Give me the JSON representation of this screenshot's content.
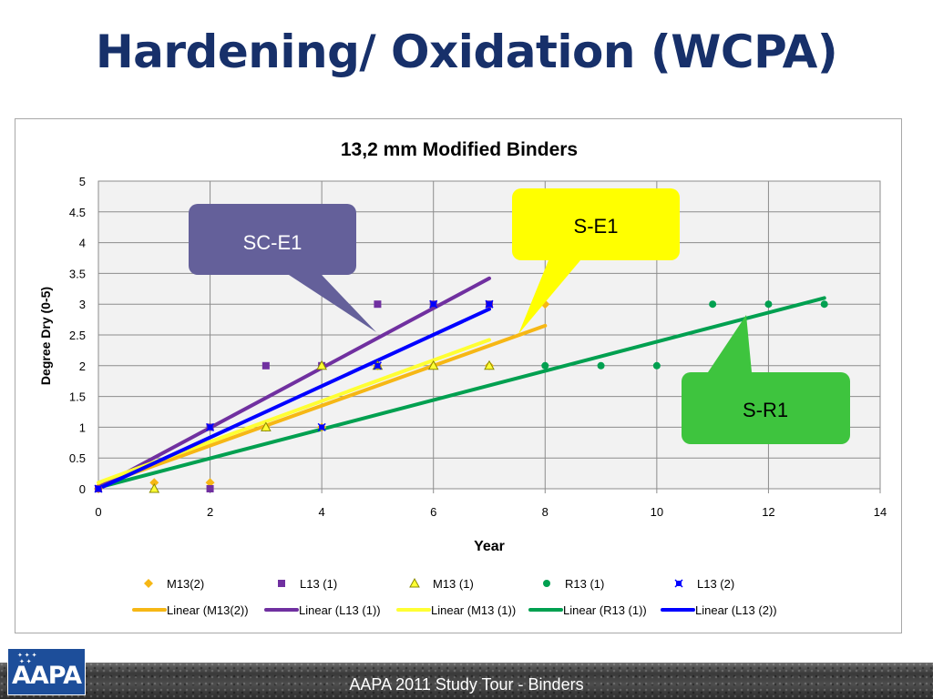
{
  "slide": {
    "title": "Hardening/ Oxidation (WCPA)",
    "footer_text": "AAPA 2011 Study Tour - Binders",
    "logo_text": "AAPA"
  },
  "colors": {
    "title": "#17306a",
    "m13_2": "#f6b715",
    "l13_1": "#7030a0",
    "m13_1": "#ffff33",
    "r13_1": "#00a050",
    "l13_2": "#0000ff",
    "callout_sc": "#64609a",
    "callout_s": "#ffff00",
    "callout_r": "#3ec43e"
  },
  "chart_data": {
    "type": "scatter",
    "title": "13,2 mm Modified Binders",
    "xlabel": "Year",
    "ylabel": "Degree Dry (0-5)",
    "xlim": [
      0,
      14
    ],
    "ylim": [
      0,
      5
    ],
    "xticks": [
      0,
      2,
      4,
      6,
      8,
      10,
      12,
      14
    ],
    "yticks": [
      0,
      0.5,
      1,
      1.5,
      2,
      2.5,
      3,
      3.5,
      4,
      4.5,
      5
    ],
    "grid": true,
    "legend_position": "bottom",
    "series": [
      {
        "name": "M13(2)",
        "marker": "diamond",
        "color": "#f6b715",
        "points": [
          [
            0,
            0
          ],
          [
            1,
            0.1
          ],
          [
            2,
            0.1
          ],
          [
            3,
            1
          ],
          [
            4,
            1
          ],
          [
            5,
            2
          ],
          [
            6,
            2
          ],
          [
            7,
            2
          ],
          [
            8,
            3
          ]
        ]
      },
      {
        "name": "L13 (1)",
        "marker": "square",
        "color": "#7030a0",
        "points": [
          [
            0,
            0
          ],
          [
            2,
            0
          ],
          [
            2,
            1
          ],
          [
            3,
            2
          ],
          [
            4,
            2
          ],
          [
            5,
            3
          ],
          [
            6,
            3
          ],
          [
            7,
            3
          ]
        ]
      },
      {
        "name": "M13 (1)",
        "marker": "triangle",
        "color": "#ffff33",
        "points": [
          [
            1,
            0
          ],
          [
            3,
            1
          ],
          [
            4,
            2
          ],
          [
            5,
            2
          ],
          [
            6,
            2
          ],
          [
            7,
            2
          ]
        ]
      },
      {
        "name": "R13 (1)",
        "marker": "circle",
        "color": "#00a050",
        "points": [
          [
            8,
            2
          ],
          [
            9,
            2
          ],
          [
            10,
            2
          ],
          [
            11,
            3
          ],
          [
            12,
            3
          ],
          [
            13,
            3
          ]
        ]
      },
      {
        "name": "L13 (2)",
        "marker": "star",
        "color": "#0000ff",
        "points": [
          [
            0,
            0
          ],
          [
            2,
            1
          ],
          [
            4,
            1
          ],
          [
            5,
            2
          ],
          [
            6,
            3
          ],
          [
            7,
            3
          ]
        ]
      }
    ],
    "trendlines": [
      {
        "name": "Linear (M13(2))",
        "color": "#f6b715",
        "x": [
          0,
          8
        ],
        "y": [
          0.05,
          2.65
        ]
      },
      {
        "name": "Linear (L13 (1))",
        "color": "#7030a0",
        "x": [
          0,
          7
        ],
        "y": [
          0.02,
          3.42
        ]
      },
      {
        "name": "Linear (M13 (1))",
        "color": "#ffff33",
        "x": [
          0,
          7
        ],
        "y": [
          0.1,
          2.42
        ]
      },
      {
        "name": "Linear (R13 (1))",
        "color": "#00a050",
        "x": [
          0,
          13
        ],
        "y": [
          0.02,
          3.1
        ]
      },
      {
        "name": "Linear (L13 (2))",
        "color": "#0000ff",
        "x": [
          0,
          7
        ],
        "y": [
          0.0,
          2.92
        ]
      }
    ],
    "callouts": [
      {
        "text": "SC-E1",
        "color": "#64609a",
        "text_color": "#ffffff"
      },
      {
        "text": "S-E1",
        "color": "#ffff00",
        "text_color": "#000000"
      },
      {
        "text": "S-R1",
        "color": "#3ec43e",
        "text_color": "#000000"
      }
    ]
  }
}
